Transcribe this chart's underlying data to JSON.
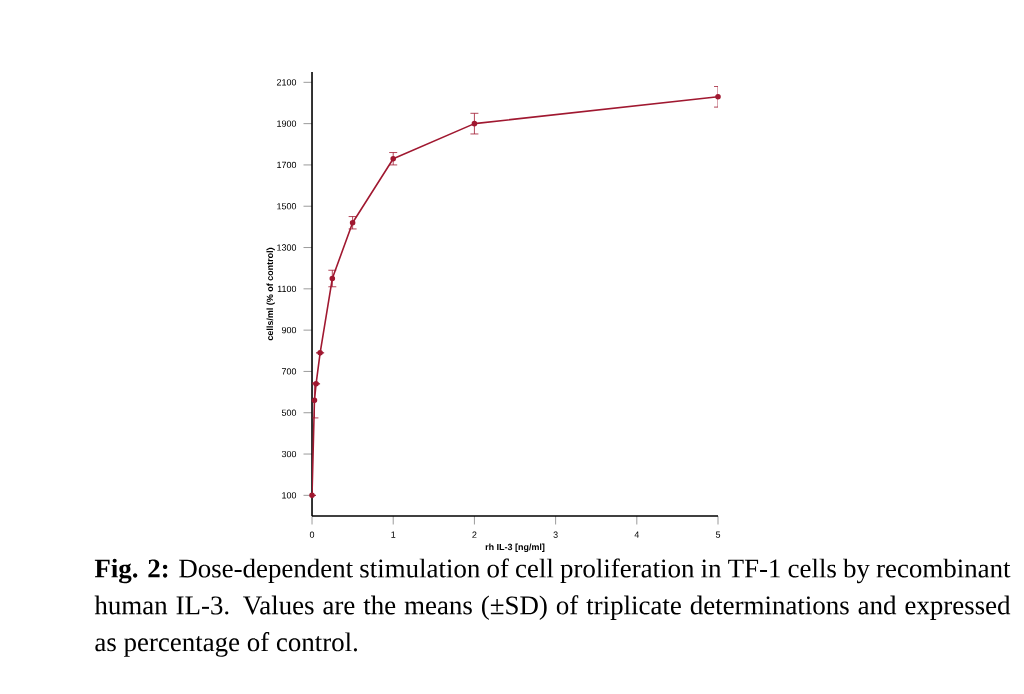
{
  "chart_data": {
    "type": "line",
    "xlabel": "rh IL-3 [ng/ml]",
    "ylabel": "cells/ml (% of control)",
    "annotations": [
      "**Fig. 2:** Dose-dependent stimulation of cell proliferation in TF-1 cells by recombinant human IL-3. Values are the means (±SD) of triplicate determinations and expressed as percentage of control."
    ],
    "x": [
      0,
      0.03,
      0.05,
      0.1,
      0.25,
      0.5,
      1,
      2,
      5
    ],
    "series": [
      {
        "color": "#a01830",
        "values": [
          100,
          560,
          640,
          790,
          1150,
          1420,
          1730,
          1900,
          2030
        ],
        "errors": [
          null,
          85,
          null,
          null,
          40,
          30,
          30,
          50,
          50
        ]
      }
    ],
    "xlim": [
      0,
      5
    ],
    "ylim": [
      0,
      2150
    ],
    "xticks": [
      0,
      1,
      2,
      3,
      4,
      5
    ],
    "yticks": [
      100,
      300,
      500,
      700,
      900,
      1100,
      1300,
      1500,
      1700,
      1900,
      2100
    ],
    "marker": "circle",
    "line_style": "solid",
    "grid": false
  }
}
